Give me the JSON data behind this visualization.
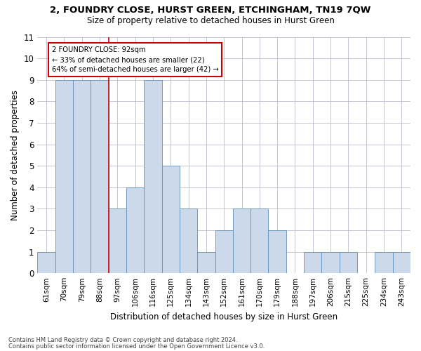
{
  "title": "2, FOUNDRY CLOSE, HURST GREEN, ETCHINGHAM, TN19 7QW",
  "subtitle": "Size of property relative to detached houses in Hurst Green",
  "xlabel": "Distribution of detached houses by size in Hurst Green",
  "ylabel": "Number of detached properties",
  "footnote1": "Contains HM Land Registry data © Crown copyright and database right 2024.",
  "footnote2": "Contains public sector information licensed under the Open Government Licence v3.0.",
  "bins": [
    "61sqm",
    "70sqm",
    "79sqm",
    "88sqm",
    "97sqm",
    "106sqm",
    "116sqm",
    "125sqm",
    "134sqm",
    "143sqm",
    "152sqm",
    "161sqm",
    "170sqm",
    "179sqm",
    "188sqm",
    "197sqm",
    "206sqm",
    "215sqm",
    "225sqm",
    "234sqm",
    "243sqm"
  ],
  "values": [
    1,
    9,
    9,
    9,
    3,
    4,
    9,
    5,
    3,
    1,
    2,
    3,
    3,
    2,
    0,
    1,
    1,
    1,
    0,
    1,
    1
  ],
  "bar_color": "#ccd9eb",
  "bar_edge_color": "#6090bb",
  "marker_line_color": "#cc0000",
  "annotation_line1": "2 FOUNDRY CLOSE: 92sqm",
  "annotation_line2": "← 33% of detached houses are smaller (22)",
  "annotation_line3": "64% of semi-detached houses are larger (42) →",
  "annotation_box_color": "#ffffff",
  "annotation_border_color": "#cc0000",
  "ylim_max": 11,
  "background_color": "#ffffff",
  "grid_color": "#bbbbcc"
}
